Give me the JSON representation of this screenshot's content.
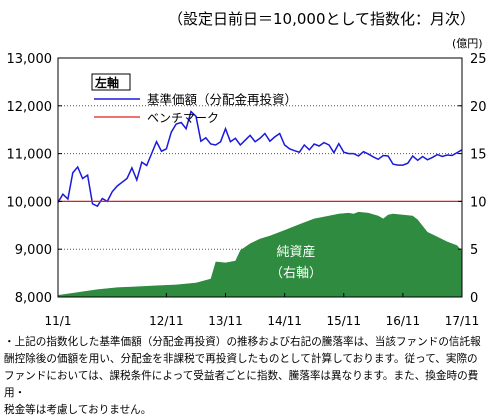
{
  "subtitle": "（設定日前日＝10,000として指数化：月次）",
  "right_unit": "(億円)",
  "footnote": "・上記の指数化した基準価額（分配金再投資）の推移および右記の騰落率は、当該ファンドの信託報\n酬控除後の価額を用い、分配金を非課税で再投資したものとして計算しております。従って、実際の\nファンドにおいては、課税条件によって受益者ごとに指数、騰落率は異なります。また、換金時の費用・\n税金等は考慮しておりません。",
  "chart_data": {
    "type": "line",
    "title": "",
    "x_ticks": [
      "11/1",
      "12/11",
      "13/11",
      "14/11",
      "15/11",
      "16/11",
      "17/11"
    ],
    "x_range_months": [
      0,
      82
    ],
    "x_tick_months": [
      0,
      22,
      34,
      46,
      58,
      70,
      82
    ],
    "left_axis": {
      "label": "左軸",
      "range": [
        8000,
        13000
      ],
      "ticks": [
        "8,000",
        "9,000",
        "10,000",
        "11,000",
        "12,000",
        "13,000"
      ],
      "tick_values": [
        8000,
        9000,
        10000,
        11000,
        12000,
        13000
      ]
    },
    "right_axis": {
      "unit": "(億円)",
      "range": [
        0,
        25
      ],
      "ticks": [
        "0",
        "5",
        "10",
        "15",
        "20",
        "25"
      ],
      "tick_values": [
        0,
        5,
        10,
        15,
        20,
        25
      ]
    },
    "grid": "horizontal dotted",
    "legend_placement": "top-left",
    "series": [
      {
        "name": "基準価額（分配金再投資）",
        "axis": "left",
        "color": "#1a1adb",
        "values": [
          [
            0,
            9980
          ],
          [
            1,
            10150
          ],
          [
            2,
            10050
          ],
          [
            3,
            10600
          ],
          [
            4,
            10720
          ],
          [
            5,
            10480
          ],
          [
            6,
            10550
          ],
          [
            7,
            9950
          ],
          [
            8,
            9900
          ],
          [
            9,
            10060
          ],
          [
            10,
            10000
          ],
          [
            11,
            10200
          ],
          [
            12,
            10320
          ],
          [
            13,
            10400
          ],
          [
            14,
            10480
          ],
          [
            15,
            10700
          ],
          [
            16,
            10450
          ],
          [
            17,
            10820
          ],
          [
            18,
            10750
          ],
          [
            19,
            11000
          ],
          [
            20,
            11250
          ],
          [
            21,
            11050
          ],
          [
            22,
            11100
          ],
          [
            23,
            11450
          ],
          [
            24,
            11620
          ],
          [
            25,
            11650
          ],
          [
            26,
            11520
          ],
          [
            27,
            11880
          ],
          [
            28,
            11780
          ],
          [
            29,
            11260
          ],
          [
            30,
            11330
          ],
          [
            31,
            11200
          ],
          [
            32,
            11180
          ],
          [
            33,
            11250
          ],
          [
            34,
            11520
          ],
          [
            35,
            11250
          ],
          [
            36,
            11320
          ],
          [
            37,
            11180
          ],
          [
            38,
            11280
          ],
          [
            39,
            11380
          ],
          [
            40,
            11250
          ],
          [
            41,
            11320
          ],
          [
            42,
            11420
          ],
          [
            43,
            11260
          ],
          [
            44,
            11350
          ],
          [
            45,
            11420
          ],
          [
            46,
            11180
          ],
          [
            47,
            11100
          ],
          [
            48,
            11060
          ],
          [
            49,
            11030
          ],
          [
            50,
            11180
          ],
          [
            51,
            11080
          ],
          [
            52,
            11200
          ],
          [
            53,
            11160
          ],
          [
            54,
            11230
          ],
          [
            55,
            11180
          ],
          [
            56,
            11020
          ],
          [
            57,
            11210
          ],
          [
            58,
            11030
          ],
          [
            59,
            11000
          ],
          [
            60,
            11000
          ],
          [
            61,
            10950
          ],
          [
            62,
            11040
          ],
          [
            63,
            10990
          ],
          [
            64,
            10930
          ],
          [
            65,
            10880
          ],
          [
            66,
            10960
          ],
          [
            67,
            10950
          ],
          [
            68,
            10780
          ],
          [
            69,
            10760
          ],
          [
            70,
            10760
          ],
          [
            71,
            10800
          ],
          [
            72,
            10950
          ],
          [
            73,
            10860
          ],
          [
            74,
            10940
          ],
          [
            75,
            10870
          ],
          [
            76,
            10920
          ],
          [
            77,
            10980
          ],
          [
            78,
            10940
          ],
          [
            79,
            10970
          ],
          [
            80,
            10960
          ],
          [
            81,
            11020
          ],
          [
            82,
            11080
          ]
        ]
      },
      {
        "name": "ベンチマーク",
        "axis": "left",
        "color": "#e0201a",
        "values": [
          [
            0,
            10000
          ],
          [
            82,
            10000
          ]
        ]
      },
      {
        "name": "純資産（右軸）",
        "label_line1": "純資産",
        "label_line2": "（右軸）",
        "axis": "right",
        "type": "area",
        "color": "#2e8b3f",
        "values": [
          [
            0,
            0.2
          ],
          [
            4,
            0.5
          ],
          [
            8,
            0.8
          ],
          [
            12,
            1.0
          ],
          [
            16,
            1.1
          ],
          [
            20,
            1.2
          ],
          [
            24,
            1.3
          ],
          [
            28,
            1.5
          ],
          [
            31,
            1.9
          ],
          [
            32,
            3.7
          ],
          [
            34,
            3.6
          ],
          [
            36,
            3.8
          ],
          [
            37,
            4.9
          ],
          [
            39,
            5.6
          ],
          [
            41,
            6.1
          ],
          [
            43,
            6.4
          ],
          [
            46,
            7.0
          ],
          [
            49,
            7.6
          ],
          [
            52,
            8.2
          ],
          [
            55,
            8.5
          ],
          [
            57,
            8.7
          ],
          [
            59,
            8.8
          ],
          [
            60,
            8.7
          ],
          [
            61,
            8.9
          ],
          [
            63,
            8.8
          ],
          [
            65,
            8.5
          ],
          [
            66,
            8.2
          ],
          [
            67,
            8.6
          ],
          [
            68,
            8.7
          ],
          [
            70,
            8.6
          ],
          [
            72,
            8.5
          ],
          [
            73,
            8.1
          ],
          [
            75,
            6.8
          ],
          [
            77,
            6.3
          ],
          [
            79,
            5.8
          ],
          [
            81,
            5.4
          ],
          [
            82,
            4.8
          ]
        ]
      }
    ]
  }
}
